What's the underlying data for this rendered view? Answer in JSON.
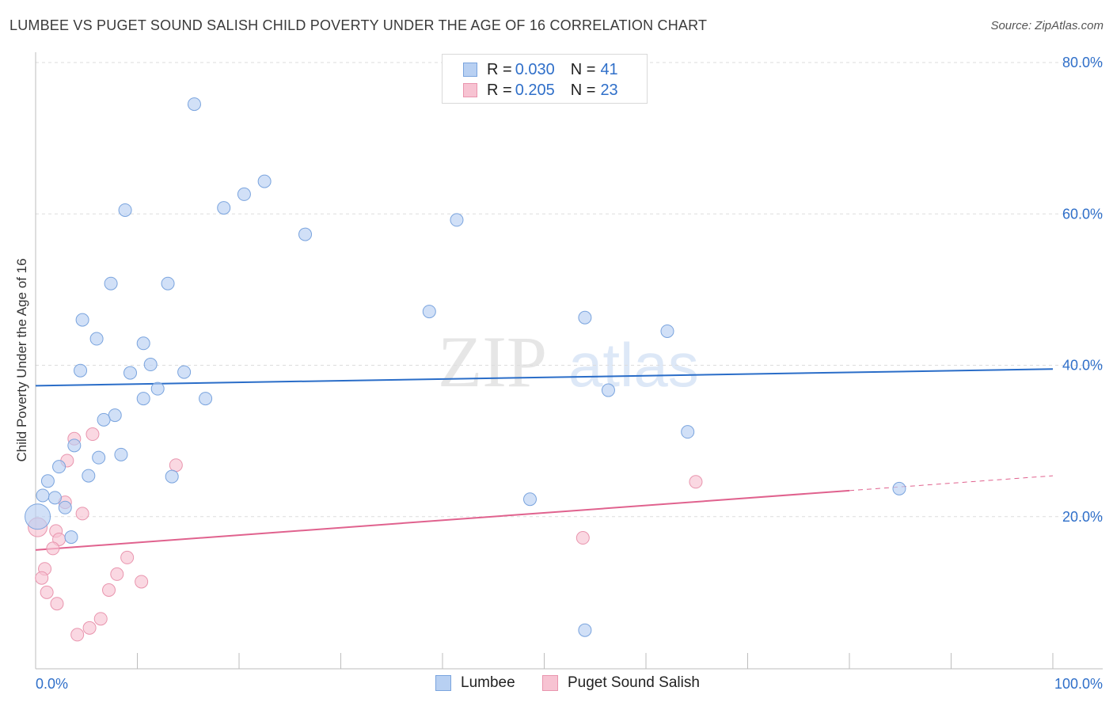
{
  "title": "LUMBEE VS PUGET SOUND SALISH CHILD POVERTY UNDER THE AGE OF 16 CORRELATION CHART",
  "source": "Source: ZipAtlas.com",
  "watermark": {
    "part1": "ZIP",
    "part2": "atlas"
  },
  "legend": {
    "rows": [
      {
        "r_label": "R = ",
        "r_value": "0.030",
        "n_label": "N = ",
        "n_value": "41"
      },
      {
        "r_label": "R = ",
        "r_value": "0.205",
        "n_label": "N = ",
        "n_value": "23"
      }
    ]
  },
  "colors": {
    "lumbee_fill": "#b8d0f2",
    "lumbee_stroke": "#7aa4de",
    "lumbee_line": "#2a6dc8",
    "salish_fill": "#f7c3d2",
    "salish_stroke": "#e995ae",
    "salish_line": "#e0628e",
    "axis_text": "#2f6fc9",
    "grid": "#dddddd"
  },
  "chart_data": {
    "type": "scatter",
    "title": "LUMBEE VS PUGET SOUND SALISH CHILD POVERTY UNDER THE AGE OF 16 CORRELATION CHART",
    "xlabel": "",
    "ylabel": "Child Poverty Under the Age of 16",
    "xlim": [
      0,
      100
    ],
    "ylim": [
      0,
      80
    ],
    "x_tick_labels": [
      "0.0%",
      "100.0%"
    ],
    "y_ticks": [
      20,
      40,
      60,
      80
    ],
    "y_tick_labels": [
      "20.0%",
      "40.0%",
      "60.0%",
      "80.0%"
    ],
    "grid": "horizontal dashed",
    "legend_position": "top-center",
    "series": [
      {
        "name": "Lumbee",
        "r": 0.03,
        "n": 41,
        "trend": {
          "x0": 0,
          "y0": 37.3,
          "x1": 100,
          "y1": 39.5
        },
        "points": [
          [
            15.6,
            74.5
          ],
          [
            22.5,
            64.3
          ],
          [
            20.5,
            62.6
          ],
          [
            18.5,
            60.8
          ],
          [
            8.8,
            60.5
          ],
          [
            41.4,
            59.2
          ],
          [
            26.5,
            57.3
          ],
          [
            7.4,
            50.8
          ],
          [
            13.0,
            50.8
          ],
          [
            38.7,
            47.1
          ],
          [
            4.6,
            46.0
          ],
          [
            54.0,
            46.3
          ],
          [
            62.1,
            44.5
          ],
          [
            6.0,
            43.5
          ],
          [
            10.6,
            42.9
          ],
          [
            11.3,
            40.1
          ],
          [
            4.4,
            39.3
          ],
          [
            9.3,
            39.0
          ],
          [
            14.6,
            39.1
          ],
          [
            12.0,
            36.9
          ],
          [
            10.6,
            35.6
          ],
          [
            16.7,
            35.6
          ],
          [
            56.3,
            36.7
          ],
          [
            7.8,
            33.4
          ],
          [
            6.7,
            32.8
          ],
          [
            64.1,
            31.2
          ],
          [
            3.8,
            29.4
          ],
          [
            6.2,
            27.8
          ],
          [
            8.4,
            28.2
          ],
          [
            2.3,
            26.6
          ],
          [
            5.2,
            25.4
          ],
          [
            13.4,
            25.3
          ],
          [
            1.2,
            24.7
          ],
          [
            0.7,
            22.8
          ],
          [
            1.9,
            22.5
          ],
          [
            48.6,
            22.3
          ],
          [
            84.9,
            23.7
          ],
          [
            2.9,
            21.2
          ],
          [
            0.2,
            20.0
          ],
          [
            3.5,
            17.3
          ],
          [
            54.0,
            5.0
          ]
        ]
      },
      {
        "name": "Puget Sound Salish",
        "r": 0.205,
        "n": 23,
        "trend": {
          "x0": 0,
          "y0": 15.6,
          "x1": 100,
          "y1": 25.4
        },
        "points": [
          [
            5.6,
            30.9
          ],
          [
            3.8,
            30.3
          ],
          [
            3.1,
            27.4
          ],
          [
            13.8,
            26.8
          ],
          [
            64.9,
            24.6
          ],
          [
            2.9,
            21.9
          ],
          [
            4.6,
            20.4
          ],
          [
            0.2,
            18.6
          ],
          [
            2.0,
            18.1
          ],
          [
            2.3,
            17.0
          ],
          [
            53.8,
            17.2
          ],
          [
            1.7,
            15.8
          ],
          [
            9.0,
            14.6
          ],
          [
            0.9,
            13.1
          ],
          [
            8.0,
            12.4
          ],
          [
            0.6,
            11.9
          ],
          [
            10.4,
            11.4
          ],
          [
            7.2,
            10.3
          ],
          [
            1.1,
            10.0
          ],
          [
            2.1,
            8.5
          ],
          [
            6.4,
            6.5
          ],
          [
            5.3,
            5.3
          ],
          [
            4.1,
            4.4
          ]
        ]
      }
    ]
  },
  "bottom_legend": [
    {
      "label": "Lumbee"
    },
    {
      "label": "Puget Sound Salish"
    }
  ]
}
